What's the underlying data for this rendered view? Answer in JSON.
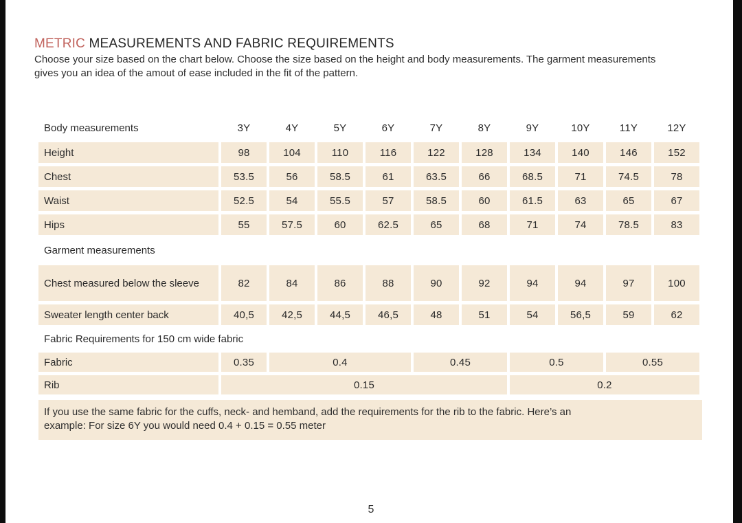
{
  "colors": {
    "accent": "#c0615b",
    "cell_bg": "#f5e9d7",
    "edge": "#0d0d0d",
    "text": "#2b2b2b"
  },
  "header": {
    "title_accent": "METRIC",
    "title_rest": "MEASUREMENTS AND FABRIC REQUIREMENTS",
    "intro_line1": "Choose your size based on the chart below. Choose the size based on the height and body measurements. The garment measurements",
    "intro_line2": "gives you an idea of the amout of ease included in the fit of the pattern."
  },
  "table": {
    "header": {
      "label": "Body measurements",
      "sizes": [
        "3Y",
        "4Y",
        "5Y",
        "6Y",
        "7Y",
        "8Y",
        "9Y",
        "10Y",
        "11Y",
        "12Y"
      ]
    },
    "body_rows": [
      {
        "label": "Height",
        "values": [
          "98",
          "104",
          "110",
          "116",
          "122",
          "128",
          "134",
          "140",
          "146",
          "152"
        ]
      },
      {
        "label": "Chest",
        "values": [
          "53.5",
          "56",
          "58.5",
          "61",
          "63.5",
          "66",
          "68.5",
          "71",
          "74.5",
          "78"
        ]
      },
      {
        "label": "Waist",
        "values": [
          "52.5",
          "54",
          "55.5",
          "57",
          "58.5",
          "60",
          "61.5",
          "63",
          "65",
          "67"
        ]
      },
      {
        "label": "Hips",
        "values": [
          "55",
          "57.5",
          "60",
          "62.5",
          "65",
          "68",
          "71",
          "74",
          "78.5",
          "83"
        ]
      }
    ],
    "garment_section_label": "Garment measurements",
    "garment_rows": [
      {
        "label": "Chest measured below the sleeve",
        "values": [
          "82",
          "84",
          "86",
          "88",
          "90",
          "92",
          "94",
          "94",
          "97",
          "100"
        ]
      },
      {
        "label": "Sweater length center back",
        "values": [
          "40,5",
          "42,5",
          "44,5",
          "46,5",
          "48",
          "51",
          "54",
          "56,5",
          "59",
          "62"
        ]
      }
    ],
    "fabric_section_label": "Fabric Requirements for 150 cm wide fabric",
    "fabric_rows": [
      {
        "label": "Fabric",
        "cells": [
          {
            "value": "0.35",
            "span": 1
          },
          {
            "value": "0.4",
            "span": 3
          },
          {
            "value": "0.45",
            "span": 2
          },
          {
            "value": "0.5",
            "span": 2
          },
          {
            "value": "0.55",
            "span": 2
          }
        ]
      },
      {
        "label": "Rib",
        "cells": [
          {
            "value": "0.15",
            "span": 6
          },
          {
            "value": "0.2",
            "span": 4
          }
        ]
      }
    ]
  },
  "note": {
    "line1": "If you use the same fabric for the cuffs, neck- and hemband, add the requirements for the rib to the fabric. Here’s an",
    "line2": "example: For size 6Y you would need 0.4 + 0.15 = 0.55 meter"
  },
  "footer": {
    "page_number": "5"
  }
}
